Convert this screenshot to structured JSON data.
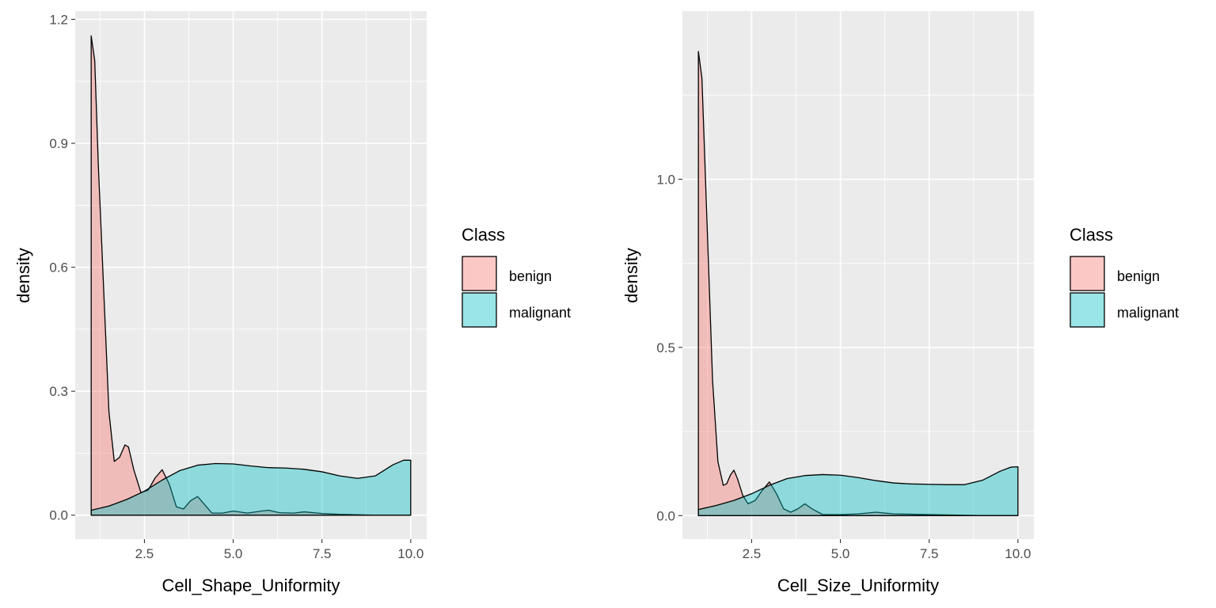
{
  "colors": {
    "panel_bg": "#EBEBEB",
    "grid": "#FFFFFF",
    "benign_fill": "#F8766D",
    "malignant_fill": "#00BFC4",
    "fill_alpha": 0.4,
    "outline": "#000000",
    "tick_text": "#4D4D4D",
    "text": "#000000"
  },
  "chart_data": [
    {
      "type": "area",
      "subtype": "density",
      "xlabel": "Cell_Shape_Uniformity",
      "ylabel": "density",
      "xlim": [
        0.55,
        10.45
      ],
      "ylim": [
        -0.058,
        1.22
      ],
      "x_ticks": [
        2.5,
        5.0,
        7.5,
        10.0
      ],
      "x_tick_labels": [
        "2.5",
        "5.0",
        "7.5",
        "10.0"
      ],
      "y_ticks": [
        0.0,
        0.3,
        0.6,
        0.9,
        1.2
      ],
      "y_tick_labels": [
        "0.0",
        "0.3",
        "0.6",
        "0.9",
        "1.2"
      ],
      "grid": true,
      "legend": {
        "title": "Class",
        "position": "right",
        "entries": [
          "benign",
          "malignant"
        ]
      },
      "series": [
        {
          "name": "benign",
          "x": [
            1.0,
            1.1,
            1.2,
            1.35,
            1.5,
            1.65,
            1.8,
            1.95,
            2.05,
            2.2,
            2.4,
            2.6,
            2.8,
            3.0,
            3.2,
            3.4,
            3.6,
            3.8,
            4.0,
            4.2,
            4.4,
            4.7,
            5.0,
            5.4,
            5.8,
            6.0,
            6.3,
            6.7,
            7.0,
            7.5,
            8.0,
            9.0,
            10.0
          ],
          "y": [
            1.16,
            1.1,
            0.85,
            0.55,
            0.25,
            0.13,
            0.14,
            0.17,
            0.165,
            0.11,
            0.055,
            0.06,
            0.09,
            0.11,
            0.075,
            0.02,
            0.015,
            0.035,
            0.045,
            0.025,
            0.005,
            0.005,
            0.01,
            0.005,
            0.01,
            0.012,
            0.006,
            0.005,
            0.008,
            0.004,
            0.002,
            0.0,
            0.0
          ]
        },
        {
          "name": "malignant",
          "x": [
            1.0,
            1.5,
            2.0,
            2.5,
            3.0,
            3.5,
            4.0,
            4.5,
            5.0,
            5.5,
            6.0,
            6.5,
            7.0,
            7.5,
            8.0,
            8.5,
            9.0,
            9.5,
            9.8,
            10.0
          ],
          "y": [
            0.012,
            0.022,
            0.038,
            0.058,
            0.085,
            0.108,
            0.121,
            0.125,
            0.124,
            0.119,
            0.115,
            0.114,
            0.111,
            0.105,
            0.095,
            0.089,
            0.095,
            0.122,
            0.133,
            0.133
          ]
        }
      ]
    },
    {
      "type": "area",
      "subtype": "density",
      "xlabel": "Cell_Size_Uniformity",
      "ylabel": "density",
      "xlim": [
        0.55,
        10.45
      ],
      "ylim": [
        -0.07,
        1.5
      ],
      "x_ticks": [
        2.5,
        5.0,
        7.5,
        10.0
      ],
      "x_tick_labels": [
        "2.5",
        "5.0",
        "7.5",
        "10.0"
      ],
      "y_ticks": [
        0.0,
        0.5,
        1.0
      ],
      "y_tick_labels": [
        "0.0",
        "0.5",
        "1.0"
      ],
      "grid": true,
      "legend": {
        "title": "Class",
        "position": "right",
        "entries": [
          "benign",
          "malignant"
        ]
      },
      "series": [
        {
          "name": "benign",
          "x": [
            1.0,
            1.1,
            1.2,
            1.3,
            1.4,
            1.55,
            1.7,
            1.8,
            1.9,
            2.0,
            2.1,
            2.25,
            2.4,
            2.6,
            2.8,
            3.0,
            3.2,
            3.4,
            3.6,
            3.8,
            4.0,
            4.2,
            4.5,
            5.0,
            5.5,
            6.0,
            6.5,
            7.0,
            8.0,
            9.0,
            10.0
          ],
          "y": [
            1.38,
            1.3,
            1.0,
            0.7,
            0.4,
            0.16,
            0.09,
            0.095,
            0.12,
            0.135,
            0.11,
            0.06,
            0.035,
            0.045,
            0.075,
            0.1,
            0.065,
            0.02,
            0.01,
            0.02,
            0.035,
            0.02,
            0.003,
            0.003,
            0.005,
            0.01,
            0.005,
            0.004,
            0.002,
            0.0,
            0.0
          ]
        },
        {
          "name": "malignant",
          "x": [
            1.0,
            1.5,
            2.0,
            2.5,
            3.0,
            3.5,
            4.0,
            4.5,
            5.0,
            5.5,
            6.0,
            6.5,
            7.0,
            7.5,
            8.0,
            8.5,
            9.0,
            9.5,
            9.8,
            10.0
          ],
          "y": [
            0.018,
            0.03,
            0.045,
            0.065,
            0.09,
            0.11,
            0.119,
            0.122,
            0.12,
            0.113,
            0.104,
            0.097,
            0.094,
            0.093,
            0.092,
            0.092,
            0.105,
            0.132,
            0.144,
            0.145
          ]
        }
      ]
    }
  ]
}
